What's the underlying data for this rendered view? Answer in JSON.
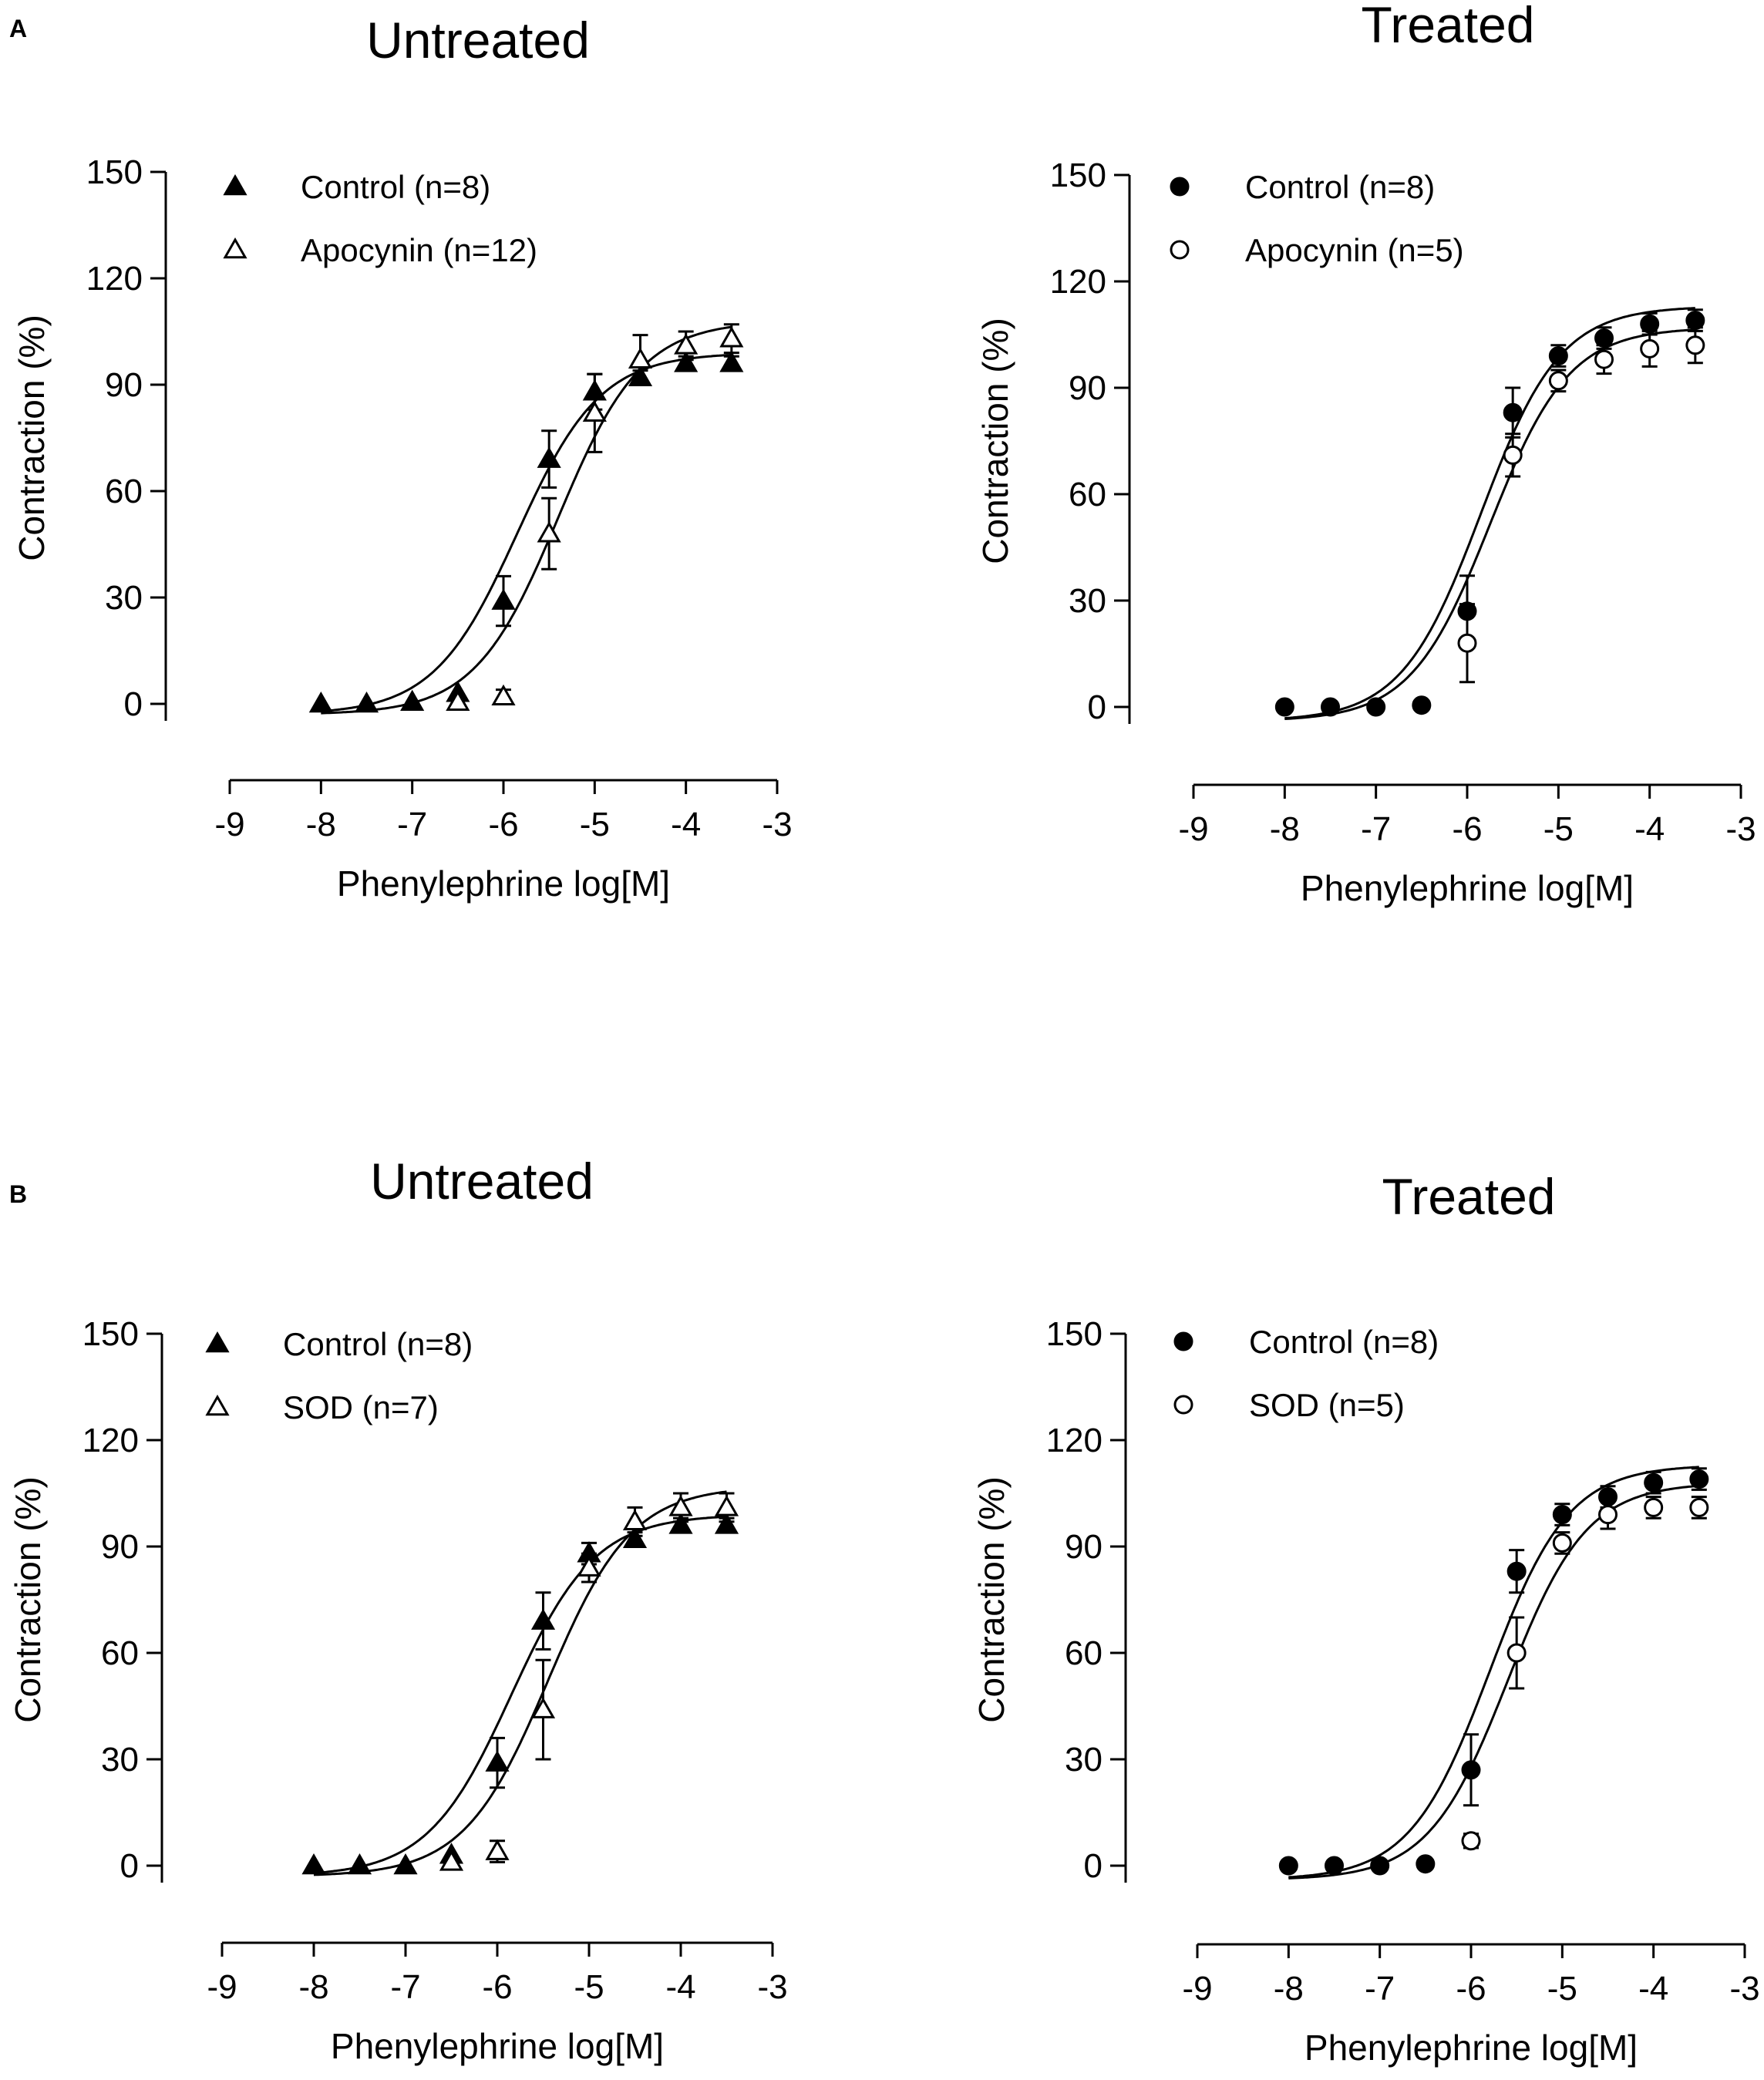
{
  "panels": [
    {
      "letter": "A"
    },
    {
      "letter": "B"
    }
  ],
  "chart_data": [
    {
      "type": "scatter",
      "panel": "A",
      "title": "Untreated",
      "xlabel": "Phenylephrine log[M]",
      "ylabel": "Contraction (%)",
      "xlim": [
        -9,
        -3
      ],
      "ylim": [
        0,
        150
      ],
      "xticks": [
        "-9",
        "-8",
        "-7",
        "-6",
        "-5",
        "-4",
        "-3"
      ],
      "yticks": [
        "0",
        "30",
        "60",
        "90",
        "120",
        "150"
      ],
      "legend_position": "top-left",
      "series": [
        {
          "name": "Control (n=8)",
          "marker": "triangle-filled",
          "x": [
            -8,
            -7.5,
            -7,
            -6.5,
            -6,
            -5.5,
            -5,
            -4.5,
            -4,
            -3.5
          ],
          "y": [
            0,
            0,
            0.5,
            3,
            29,
            69,
            88,
            92,
            96,
            96
          ],
          "err": [
            0,
            0,
            0,
            0,
            7,
            8,
            5,
            2,
            2,
            2
          ],
          "fit": {
            "bottom": -3,
            "top": 99,
            "logEC50": -5.85,
            "hill": 0.95
          }
        },
        {
          "name": "Apocynin (n=12)",
          "marker": "triangle-open",
          "x": [
            -6.5,
            -6,
            -5.5,
            -5,
            -4.5,
            -4,
            -3.5
          ],
          "y": [
            0.5,
            2,
            48,
            82,
            97,
            101,
            103
          ],
          "err": [
            0,
            2,
            10,
            11,
            7,
            4,
            4
          ],
          "fit": {
            "bottom": -3,
            "top": 108,
            "logEC50": -5.4,
            "hill": 0.95
          }
        }
      ]
    },
    {
      "type": "scatter",
      "panel": "A",
      "title": "Treated",
      "xlabel": "Phenylephrine log[M]",
      "ylabel": "Contraction (%)",
      "xlim": [
        -9,
        -3
      ],
      "ylim": [
        0,
        150
      ],
      "xticks": [
        "-9",
        "-8",
        "-7",
        "-6",
        "-5",
        "-4",
        "-3"
      ],
      "yticks": [
        "0",
        "30",
        "60",
        "90",
        "120",
        "150"
      ],
      "legend_position": "top-left",
      "series": [
        {
          "name": "Control (n=8)",
          "marker": "circle-filled",
          "x": [
            -8,
            -7.5,
            -7,
            -6.5,
            -6,
            -5.5,
            -5,
            -4.5,
            -4,
            -3.5
          ],
          "y": [
            0,
            0,
            0,
            0.5,
            27,
            83,
            99,
            104,
            108,
            109
          ],
          "err": [
            0,
            0,
            0,
            0,
            10,
            7,
            3,
            3,
            3,
            3
          ],
          "fit": {
            "bottom": -4,
            "top": 113,
            "logEC50": -5.85,
            "hill": 1.0
          }
        },
        {
          "name": "Apocynin (n=5)",
          "marker": "circle-open",
          "x": [
            -6,
            -5.5,
            -5,
            -4.5,
            -4,
            -3.5
          ],
          "y": [
            18,
            71,
            92,
            98,
            101,
            102
          ],
          "err": [
            11,
            6,
            3,
            4,
            5,
            5
          ],
          "fit": {
            "bottom": -4,
            "top": 107,
            "logEC50": -5.75,
            "hill": 1.0
          }
        }
      ]
    },
    {
      "type": "scatter",
      "panel": "B",
      "title": "Untreated",
      "xlabel": "Phenylephrine log[M]",
      "ylabel": "Contraction (%)",
      "xlim": [
        -9,
        -3
      ],
      "ylim": [
        0,
        150
      ],
      "xticks": [
        "-9",
        "-8",
        "-7",
        "-6",
        "-5",
        "-4",
        "-3"
      ],
      "yticks": [
        "0",
        "30",
        "60",
        "90",
        "120",
        "150"
      ],
      "legend_position": "top-left",
      "series": [
        {
          "name": "Control (n=8)",
          "marker": "triangle-filled",
          "x": [
            -8,
            -7.5,
            -7,
            -6.5,
            -6,
            -5.5,
            -5,
            -4.5,
            -4,
            -3.5
          ],
          "y": [
            0,
            0,
            0,
            3,
            29,
            69,
            88,
            92,
            96,
            96
          ],
          "err": [
            0,
            0,
            0,
            0,
            7,
            8,
            3,
            2,
            2,
            2
          ],
          "fit": {
            "bottom": -3,
            "top": 99,
            "logEC50": -5.85,
            "hill": 0.95
          }
        },
        {
          "name": "SOD (n=7)",
          "marker": "triangle-open",
          "x": [
            -6.5,
            -6,
            -5.5,
            -5,
            -4.5,
            -4,
            -3.5
          ],
          "y": [
            1,
            4,
            44,
            84,
            97,
            101,
            101
          ],
          "err": [
            0,
            3,
            14,
            4,
            4,
            4,
            4
          ],
          "fit": {
            "bottom": -3,
            "top": 107,
            "logEC50": -5.45,
            "hill": 0.95
          }
        }
      ]
    },
    {
      "type": "scatter",
      "panel": "B",
      "title": "Treated",
      "xlabel": "Phenylephrine log[M]",
      "ylabel": "Contraction (%)",
      "xlim": [
        -9,
        -3
      ],
      "ylim": [
        0,
        150
      ],
      "xticks": [
        "-9",
        "-8",
        "-7",
        "-6",
        "-5",
        "-4",
        "-3"
      ],
      "yticks": [
        "0",
        "30",
        "60",
        "90",
        "120",
        "150"
      ],
      "legend_position": "top-left",
      "series": [
        {
          "name": "Control (n=8)",
          "marker": "circle-filled",
          "x": [
            -8,
            -7.5,
            -7,
            -6.5,
            -6,
            -5.5,
            -5,
            -4.5,
            -4,
            -3.5
          ],
          "y": [
            0,
            0,
            0,
            0.5,
            27,
            83,
            99,
            104,
            108,
            109
          ],
          "err": [
            0,
            0,
            0,
            0,
            10,
            6,
            3,
            3,
            3,
            3
          ],
          "fit": {
            "bottom": -4,
            "top": 113,
            "logEC50": -5.8,
            "hill": 1.0
          }
        },
        {
          "name": "SOD (n=5)",
          "marker": "circle-open",
          "x": [
            -6,
            -5.5,
            -5,
            -4.5,
            -4,
            -3.5
          ],
          "y": [
            7,
            60,
            91,
            99,
            101,
            101
          ],
          "err": [
            2,
            10,
            3,
            4,
            3,
            3
          ],
          "fit": {
            "bottom": -4,
            "top": 108,
            "logEC50": -5.6,
            "hill": 1.0
          }
        }
      ]
    }
  ]
}
